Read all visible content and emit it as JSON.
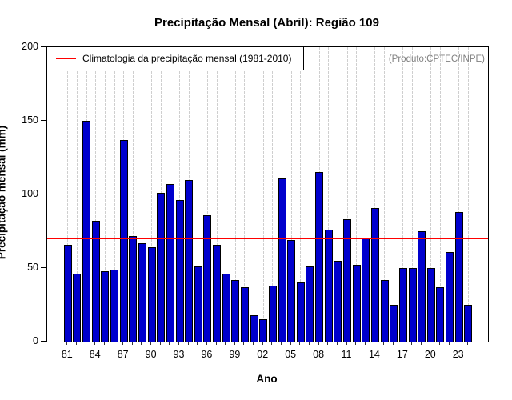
{
  "title": "Precipitação Mensal (Abril): Região 109",
  "legend": {
    "label": "Climatologia da precipitação mensal (1981-2010)",
    "line_color": "#ff0000"
  },
  "annotation": "(Produto:CPTEC/INPE)",
  "chart_data": {
    "type": "bar",
    "title": "Precipitação Mensal (Abril): Região 109",
    "xlabel": "Ano",
    "ylabel": "Precipitação mensal (mm)",
    "ylim": [
      0,
      200
    ],
    "yticks": [
      0,
      50,
      100,
      150,
      200
    ],
    "grid": "vertical-dashed",
    "legend_position": "top-left",
    "bar_color": "#0000cd",
    "line_color": "#ff0000",
    "climatology_value": 70,
    "xtick_label_every": 3,
    "xtick_labels": [
      "81",
      "84",
      "87",
      "90",
      "93",
      "96",
      "99",
      "02",
      "05",
      "08",
      "11",
      "14",
      "17",
      "20",
      "23"
    ],
    "years": [
      1981,
      1982,
      1983,
      1984,
      1985,
      1986,
      1987,
      1988,
      1989,
      1990,
      1991,
      1992,
      1993,
      1994,
      1995,
      1996,
      1997,
      1998,
      1999,
      2000,
      2001,
      2002,
      2003,
      2004,
      2005,
      2006,
      2007,
      2008,
      2009,
      2010,
      2011,
      2012,
      2013,
      2014,
      2015,
      2016,
      2017,
      2018,
      2019,
      2020,
      2021,
      2022,
      2023,
      2024
    ],
    "categories": [
      "81",
      "82",
      "83",
      "84",
      "85",
      "86",
      "87",
      "88",
      "89",
      "90",
      "91",
      "92",
      "93",
      "94",
      "95",
      "96",
      "97",
      "98",
      "99",
      "00",
      "01",
      "02",
      "03",
      "04",
      "05",
      "06",
      "07",
      "08",
      "09",
      "10",
      "11",
      "12",
      "13",
      "14",
      "15",
      "16",
      "17",
      "18",
      "19",
      "20",
      "21",
      "22",
      "23",
      "24"
    ],
    "values": [
      66,
      46,
      150,
      82,
      48,
      49,
      137,
      72,
      67,
      64,
      101,
      107,
      96,
      110,
      51,
      86,
      66,
      46,
      42,
      37,
      18,
      15,
      38,
      111,
      69,
      40,
      51,
      115,
      76,
      55,
      83,
      52,
      70,
      91,
      42,
      25,
      50,
      50,
      75,
      50,
      37,
      61,
      88,
      25
    ]
  }
}
